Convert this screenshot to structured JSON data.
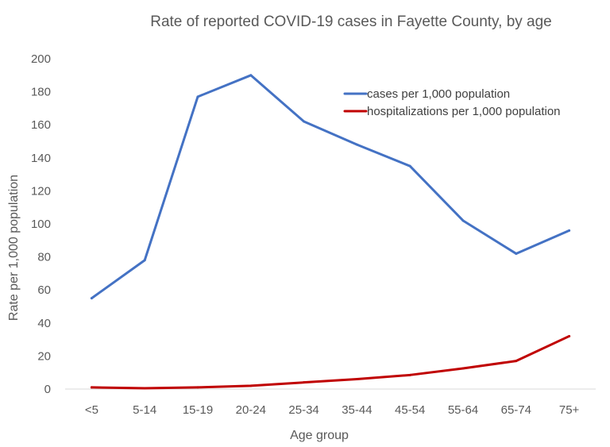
{
  "chart_data": {
    "type": "line",
    "title": "Rate of reported COVID-19 cases in Fayette County, by age",
    "xlabel": "Age group",
    "ylabel": "Rate per 1,000 population",
    "categories": [
      "<5",
      "5-14",
      "15-19",
      "20-24",
      "25-34",
      "35-44",
      "45-54",
      "55-64",
      "65-74",
      "75+"
    ],
    "ylim": [
      0,
      200
    ],
    "yticks": [
      0,
      20,
      40,
      60,
      80,
      100,
      120,
      140,
      160,
      180,
      200
    ],
    "grid": false,
    "legend_position": "top-right",
    "series": [
      {
        "name": "cases per 1,000 population",
        "color": "#4472C4",
        "values": [
          55,
          78,
          177,
          190,
          162,
          148,
          135,
          102,
          82,
          96
        ]
      },
      {
        "name": "hospitalizations per 1,000 population",
        "color": "#C00000",
        "values": [
          1,
          0.5,
          1,
          2,
          4,
          6,
          8.5,
          12.5,
          17,
          32
        ]
      }
    ]
  }
}
